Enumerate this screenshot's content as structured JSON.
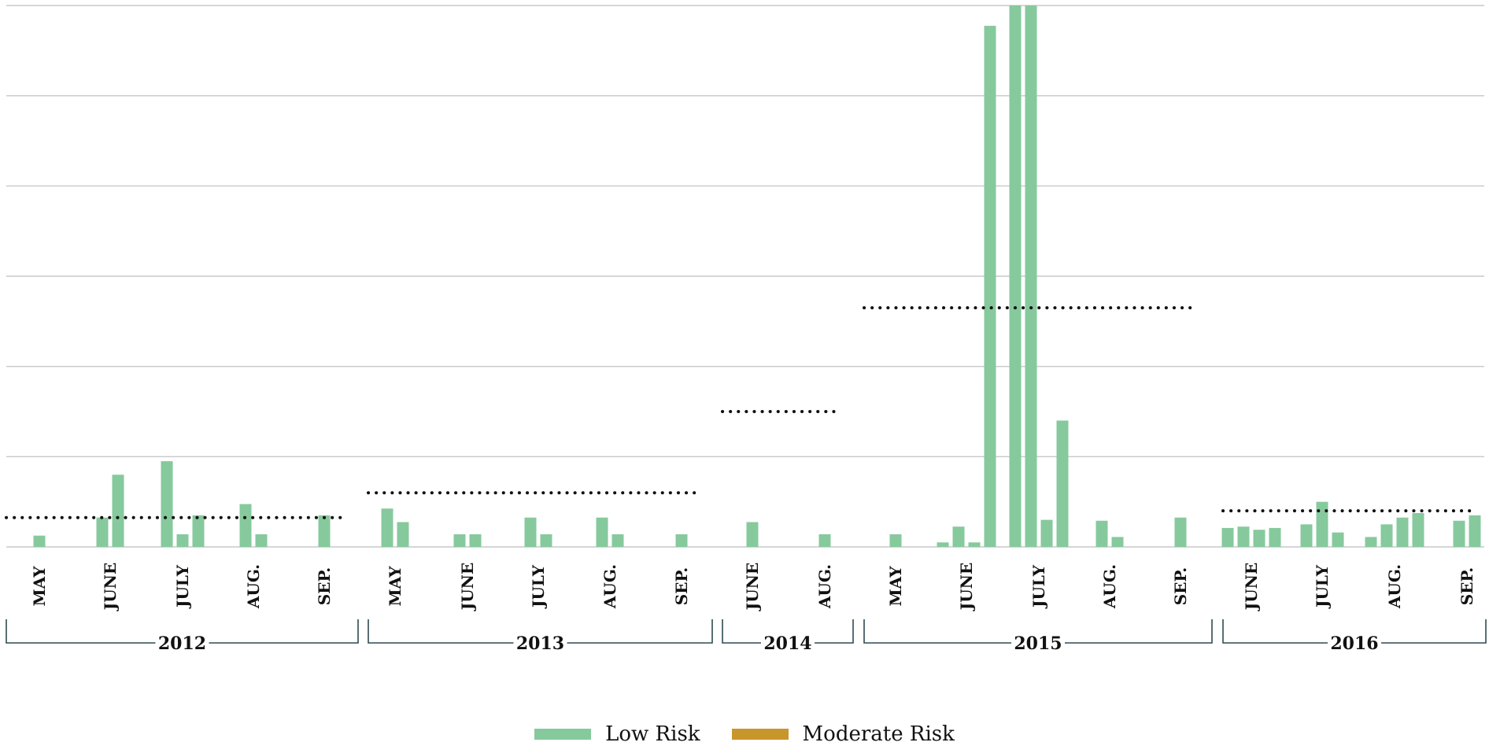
{
  "chart_data": {
    "type": "bar",
    "title": "",
    "xlabel": "",
    "ylabel": "",
    "ylim": [
      0,
      12
    ],
    "grid": true,
    "y_tick_labels_shown": false,
    "legend": {
      "placement": "bottom-center",
      "entries": [
        {
          "name": "Low Risk",
          "color": "#86c99d"
        },
        {
          "name": "Moderate Risk",
          "color": "#c9962b"
        }
      ]
    },
    "series": [
      {
        "name": "Low Risk",
        "color": "#86c99d"
      },
      {
        "name": "Moderate Risk",
        "color": "#c9962b",
        "values": []
      }
    ],
    "years": [
      {
        "year": "2012",
        "average": 0.65,
        "months": [
          {
            "label": "MAY",
            "values": [
              0.25
            ]
          },
          {
            "label": "JUNE",
            "values": [
              0.65,
              1.6
            ]
          },
          {
            "label": "JULY",
            "values": [
              1.9,
              0.28,
              0.7
            ]
          },
          {
            "label": "AUG.",
            "values": [
              0.95,
              0.28
            ]
          },
          {
            "label": "SEP.",
            "values": [
              0.7
            ]
          }
        ]
      },
      {
        "year": "2013",
        "average": 1.2,
        "months": [
          {
            "label": "MAY",
            "values": [
              0.85,
              0.55
            ]
          },
          {
            "label": "JUNE",
            "values": [
              0.28,
              0.28
            ]
          },
          {
            "label": "JULY",
            "values": [
              0.65,
              0.28
            ]
          },
          {
            "label": "AUG.",
            "values": [
              0.65,
              0.28
            ]
          },
          {
            "label": "SEP.",
            "values": [
              0.28
            ]
          }
        ]
      },
      {
        "year": "2014",
        "average": 3.0,
        "months": [
          {
            "label": "JUNE",
            "values": [
              0.55
            ]
          },
          {
            "label": "AUG.",
            "values": [
              0.28
            ]
          }
        ]
      },
      {
        "year": "2015",
        "average": 5.3,
        "months": [
          {
            "label": "MAY",
            "values": [
              0.28
            ]
          },
          {
            "label": "JUNE",
            "values": [
              0.1,
              0.45,
              0.1,
              11.55
            ]
          },
          {
            "label": "JULY",
            "values": [
              12.0,
              12.0,
              0.6,
              2.8
            ]
          },
          {
            "label": "AUG.",
            "values": [
              0.58,
              0.22
            ]
          },
          {
            "label": "SEP.",
            "values": [
              0.65
            ]
          }
        ]
      },
      {
        "year": "2016",
        "average": 0.8,
        "months": [
          {
            "label": "JUNE",
            "values": [
              0.42,
              0.45,
              0.38,
              0.42
            ]
          },
          {
            "label": "JULY",
            "values": [
              0.5,
              1.0,
              0.32
            ]
          },
          {
            "label": "AUG.",
            "values": [
              0.22,
              0.5,
              0.65,
              0.75
            ]
          },
          {
            "label": "SEP.",
            "values": [
              0.58,
              0.7
            ]
          }
        ]
      }
    ]
  }
}
